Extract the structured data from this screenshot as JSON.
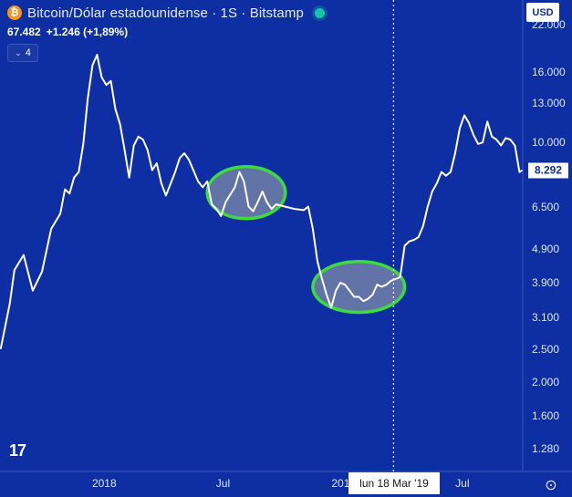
{
  "header": {
    "logo_glyph": "₿",
    "title": "Bitcoin/Dólar estadounidense · 1S · Bitstamp",
    "price": "67.482",
    "change": "+1.246 (+1,89%)",
    "indicator_count": "4",
    "chevron": "⌄"
  },
  "currency": {
    "label": "USD"
  },
  "last_price": {
    "label": "8.292",
    "value": 8292
  },
  "crosshair": {
    "label": "lun 18 Mar '19",
    "x": "2019-03-18"
  },
  "logo": {
    "text": "17"
  },
  "settings": {
    "icon": "settings-icon",
    "glyph": "⊙"
  },
  "colors": {
    "background": "#0d2fa3",
    "line": "#ffffff",
    "highlight_stroke": "#3ddc3d",
    "highlight_fill": "#7f8ca8",
    "last_price_bg": "#ffffff",
    "live_dot": "#19c3a6"
  },
  "chart_data": {
    "type": "line",
    "title": "Bitcoin/Dólar estadounidense · 1S · Bitstamp",
    "scale": "log",
    "xlabel": "",
    "ylabel": "",
    "x_tick_labels": [
      "2018",
      "Jul",
      "2019",
      "Jul"
    ],
    "y_tick_labels": [
      "1.280",
      "1.600",
      "2.000",
      "2.500",
      "3.100",
      "3.900",
      "4.900",
      "6.500",
      "10.000",
      "13.000",
      "16.000",
      "22.000"
    ],
    "y_tick_values": [
      1280,
      1600,
      2000,
      2500,
      3100,
      3900,
      4900,
      6500,
      10000,
      13000,
      16000,
      22000
    ],
    "ylim": [
      1100,
      26000
    ],
    "x_range": [
      "2017-07-26",
      "2019-10-01"
    ],
    "grid": false,
    "series": [
      {
        "points": [
          [
            "2017-07-27",
            2500
          ],
          [
            "2017-08-10",
            3400
          ],
          [
            "2017-08-17",
            4250
          ],
          [
            "2017-08-31",
            4700
          ],
          [
            "2017-09-14",
            3700
          ],
          [
            "2017-09-28",
            4200
          ],
          [
            "2017-10-12",
            5600
          ],
          [
            "2017-10-26",
            6200
          ],
          [
            "2017-11-02",
            7300
          ],
          [
            "2017-11-09",
            7100
          ],
          [
            "2017-11-16",
            7900
          ],
          [
            "2017-11-23",
            8200
          ],
          [
            "2017-11-30",
            9900
          ],
          [
            "2017-12-07",
            13500
          ],
          [
            "2017-12-14",
            16800
          ],
          [
            "2017-12-21",
            18000
          ],
          [
            "2017-12-28",
            15500
          ],
          [
            "2018-01-04",
            14700
          ],
          [
            "2018-01-11",
            15100
          ],
          [
            "2018-01-18",
            12500
          ],
          [
            "2018-01-25",
            11300
          ],
          [
            "2018-02-01",
            9500
          ],
          [
            "2018-02-08",
            7900
          ],
          [
            "2018-02-15",
            9800
          ],
          [
            "2018-02-22",
            10400
          ],
          [
            "2018-03-01",
            10200
          ],
          [
            "2018-03-08",
            9500
          ],
          [
            "2018-03-15",
            8300
          ],
          [
            "2018-03-22",
            8700
          ],
          [
            "2018-03-29",
            7600
          ],
          [
            "2018-04-05",
            7000
          ],
          [
            "2018-04-19",
            8200
          ],
          [
            "2018-04-26",
            9000
          ],
          [
            "2018-05-03",
            9300
          ],
          [
            "2018-05-10",
            8900
          ],
          [
            "2018-05-24",
            7700
          ],
          [
            "2018-05-31",
            7400
          ],
          [
            "2018-06-07",
            7700
          ],
          [
            "2018-06-14",
            6600
          ],
          [
            "2018-06-21",
            6400
          ],
          [
            "2018-06-28",
            6100
          ],
          [
            "2018-07-05",
            6700
          ],
          [
            "2018-07-19",
            7400
          ],
          [
            "2018-07-26",
            8200
          ],
          [
            "2018-08-02",
            7700
          ],
          [
            "2018-08-09",
            6500
          ],
          [
            "2018-08-16",
            6300
          ],
          [
            "2018-08-23",
            6700
          ],
          [
            "2018-08-30",
            7200
          ],
          [
            "2018-09-06",
            6700
          ],
          [
            "2018-09-13",
            6400
          ],
          [
            "2018-09-20",
            6600
          ],
          [
            "2018-10-04",
            6500
          ],
          [
            "2018-10-18",
            6400
          ],
          [
            "2018-11-01",
            6350
          ],
          [
            "2018-11-08",
            6500
          ],
          [
            "2018-11-15",
            5600
          ],
          [
            "2018-11-22",
            4500
          ],
          [
            "2018-11-29",
            4000
          ],
          [
            "2018-12-06",
            3600
          ],
          [
            "2018-12-13",
            3300
          ],
          [
            "2018-12-20",
            3700
          ],
          [
            "2018-12-27",
            3900
          ],
          [
            "2019-01-03",
            3850
          ],
          [
            "2019-01-10",
            3700
          ],
          [
            "2019-01-17",
            3550
          ],
          [
            "2019-01-24",
            3550
          ],
          [
            "2019-01-31",
            3450
          ],
          [
            "2019-02-07",
            3500
          ],
          [
            "2019-02-14",
            3600
          ],
          [
            "2019-02-21",
            3850
          ],
          [
            "2019-02-28",
            3800
          ],
          [
            "2019-03-07",
            3850
          ],
          [
            "2019-03-14",
            3950
          ],
          [
            "2019-03-21",
            4000
          ],
          [
            "2019-03-28",
            4050
          ],
          [
            "2019-04-04",
            5000
          ],
          [
            "2019-04-11",
            5150
          ],
          [
            "2019-04-18",
            5200
          ],
          [
            "2019-04-25",
            5300
          ],
          [
            "2019-05-02",
            5700
          ],
          [
            "2019-05-09",
            6500
          ],
          [
            "2019-05-16",
            7200
          ],
          [
            "2019-05-23",
            7600
          ],
          [
            "2019-05-30",
            8200
          ],
          [
            "2019-06-06",
            8000
          ],
          [
            "2019-06-13",
            8200
          ],
          [
            "2019-06-20",
            9300
          ],
          [
            "2019-06-27",
            11000
          ],
          [
            "2019-07-04",
            12000
          ],
          [
            "2019-07-11",
            11400
          ],
          [
            "2019-07-18",
            10500
          ],
          [
            "2019-07-25",
            9900
          ],
          [
            "2019-08-01",
            10000
          ],
          [
            "2019-08-08",
            11500
          ],
          [
            "2019-08-15",
            10400
          ],
          [
            "2019-08-22",
            10200
          ],
          [
            "2019-08-29",
            9800
          ],
          [
            "2019-09-05",
            10300
          ],
          [
            "2019-09-12",
            10200
          ],
          [
            "2019-09-19",
            9800
          ],
          [
            "2019-09-26",
            8200
          ],
          [
            "2019-09-30",
            8292
          ]
        ]
      }
    ],
    "highlighted_ranges": [
      {
        "x": [
          "2018-06-07",
          "2018-10-04"
        ],
        "y": [
          6000,
          8500
        ]
      },
      {
        "x": [
          "2018-11-15",
          "2019-04-04"
        ],
        "y": [
          3200,
          4500
        ]
      }
    ],
    "crosshair_x": "2019-03-18"
  }
}
